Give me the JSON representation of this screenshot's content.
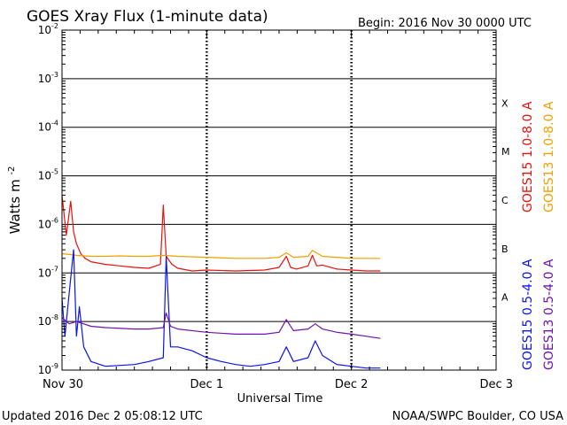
{
  "chart_data": {
    "type": "line",
    "title": "GOES Xray Flux (1-minute data)",
    "begin": "Begin:  2016 Nov 30 0000 UTC",
    "ylabel": "Watts m",
    "ylabel_sup": "-2",
    "xlabel": "Universal Time",
    "y_scale": "log",
    "ylim": [
      1e-09,
      0.01
    ],
    "xlim": [
      0,
      3
    ],
    "x_unit": "days since 2016 Nov 30 0000 UTC",
    "x_ticks": [
      {
        "value": 0,
        "label": "Nov 30"
      },
      {
        "value": 1,
        "label": "Dec 1"
      },
      {
        "value": 2,
        "label": "Dec 2"
      },
      {
        "value": 3,
        "label": "Dec 3"
      }
    ],
    "y_ticks": [
      {
        "exp": -9,
        "base": "10",
        "sup": "-9"
      },
      {
        "exp": -8,
        "base": "10",
        "sup": "-8"
      },
      {
        "exp": -7,
        "base": "10",
        "sup": "-7"
      },
      {
        "exp": -6,
        "base": "10",
        "sup": "-6"
      },
      {
        "exp": -5,
        "base": "10",
        "sup": "-5"
      },
      {
        "exp": -4,
        "base": "10",
        "sup": "-4"
      },
      {
        "exp": -3,
        "base": "10",
        "sup": "-3"
      },
      {
        "exp": -2,
        "base": "10",
        "sup": "-2"
      }
    ],
    "flare_classes": [
      {
        "label": "A",
        "exp": -7.5
      },
      {
        "label": "B",
        "exp": -6.5
      },
      {
        "label": "C",
        "exp": -5.5
      },
      {
        "label": "M",
        "exp": -4.5
      },
      {
        "label": "X",
        "exp": -3.5
      }
    ],
    "series": [
      {
        "name": "GOES15 1.0-8.0 A",
        "color": "#e8110b",
        "x": [
          0,
          0.03,
          0.06,
          0.08,
          0.1,
          0.13,
          0.16,
          0.2,
          0.3,
          0.4,
          0.5,
          0.6,
          0.68,
          0.7,
          0.72,
          0.76,
          0.8,
          0.9,
          1.0,
          1.2,
          1.4,
          1.5,
          1.55,
          1.58,
          1.62,
          1.7,
          1.73,
          1.76,
          1.8,
          1.9,
          2.0,
          2.1,
          2.2
        ],
        "values": [
          4e-06,
          6e-07,
          3e-06,
          7e-07,
          4e-07,
          2.5e-07,
          2e-07,
          1.7e-07,
          1.5e-07,
          1.4e-07,
          1.3e-07,
          1.25e-07,
          1.5e-07,
          2.5e-06,
          2.2e-07,
          1.5e-07,
          1.25e-07,
          1.1e-07,
          1.15e-07,
          1.1e-07,
          1.15e-07,
          1.3e-07,
          2.2e-07,
          1.3e-07,
          1.2e-07,
          1.4e-07,
          2.3e-07,
          1.4e-07,
          1.45e-07,
          1.2e-07,
          1.15e-07,
          1.1e-07,
          1.1e-07
        ]
      },
      {
        "name": "GOES13 1.0-8.0 A",
        "color": "#f0a000",
        "x": [
          0,
          0.05,
          0.1,
          0.2,
          0.3,
          0.4,
          0.5,
          0.6,
          0.7,
          0.8,
          1.0,
          1.2,
          1.4,
          1.5,
          1.55,
          1.6,
          1.7,
          1.73,
          1.8,
          1.9,
          2.0,
          2.1,
          2.2
        ],
        "values": [
          2.5e-07,
          2.4e-07,
          2.3e-07,
          2.2e-07,
          2.2e-07,
          2.25e-07,
          2.2e-07,
          2.2e-07,
          2.3e-07,
          2.2e-07,
          2.1e-07,
          2e-07,
          2e-07,
          2.1e-07,
          2.6e-07,
          2.1e-07,
          2.2e-07,
          2.9e-07,
          2.2e-07,
          2.1e-07,
          2e-07,
          2e-07,
          2e-07
        ]
      },
      {
        "name": "GOES15 0.5-4.0 A",
        "color": "#0a14f0",
        "x": [
          0,
          0.02,
          0.05,
          0.08,
          0.1,
          0.12,
          0.15,
          0.2,
          0.3,
          0.5,
          0.6,
          0.7,
          0.72,
          0.75,
          0.8,
          0.9,
          1.0,
          1.1,
          1.2,
          1.3,
          1.4,
          1.5,
          1.55,
          1.6,
          1.7,
          1.75,
          1.8,
          1.9,
          2.0,
          2.1,
          2.2
        ],
        "values": [
          3e-08,
          5e-09,
          4e-08,
          3e-07,
          5e-09,
          2e-08,
          3e-09,
          1.5e-09,
          1.2e-09,
          1.3e-09,
          1.5e-09,
          1.8e-09,
          2.2e-07,
          3e-09,
          3e-09,
          2.5e-09,
          1.8e-09,
          1.5e-09,
          1.3e-09,
          1.2e-09,
          1.3e-09,
          1.5e-09,
          3e-09,
          1.5e-09,
          1.8e-09,
          4e-09,
          2e-09,
          1.3e-09,
          1.2e-09,
          1.1e-09,
          1.1e-09
        ]
      },
      {
        "name": "GOES13 0.5-4.0 A",
        "color": "#7012b0",
        "x": [
          0,
          0.05,
          0.1,
          0.2,
          0.3,
          0.5,
          0.6,
          0.7,
          0.72,
          0.75,
          0.8,
          1.0,
          1.2,
          1.4,
          1.5,
          1.55,
          1.6,
          1.7,
          1.75,
          1.8,
          1.9,
          2.0,
          2.1,
          2.2
        ],
        "values": [
          1.2e-08,
          9e-09,
          1e-08,
          8e-09,
          7.5e-09,
          7e-09,
          7e-09,
          7.5e-09,
          1.5e-08,
          8e-09,
          7e-09,
          6e-09,
          5.5e-09,
          5.5e-09,
          6e-09,
          1.1e-08,
          6.5e-09,
          7e-09,
          9e-09,
          7e-09,
          6e-09,
          5.5e-09,
          5e-09,
          4.5e-09
        ]
      }
    ]
  },
  "footer": {
    "updated": "Updated 2016 Dec  2 05:08:12 UTC",
    "credit": "NOAA/SWPC Boulder, CO USA"
  }
}
